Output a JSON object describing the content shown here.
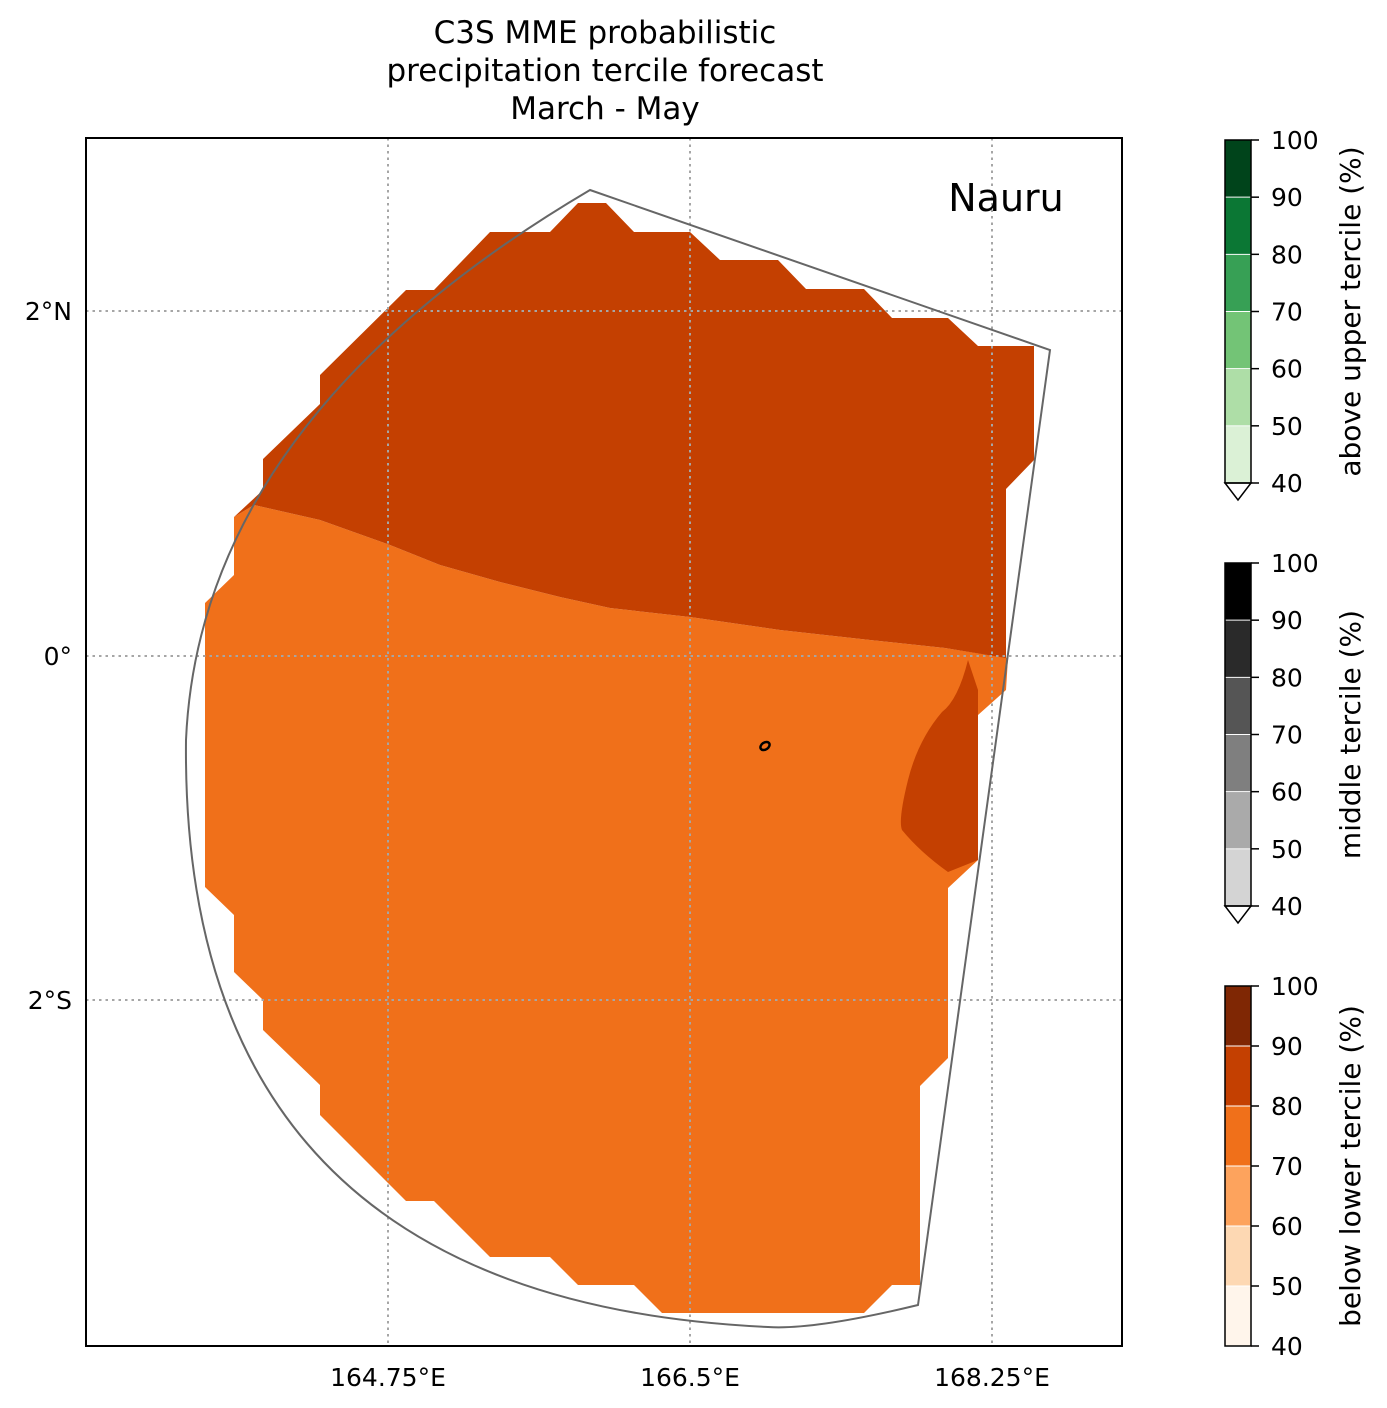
{
  "title": {
    "line1": "C3S MME probabilistic",
    "line2": "precipitation tercile forecast",
    "line3": "March - May"
  },
  "map": {
    "region_label": "Nauru",
    "lat_ticks": [
      "2°N",
      "0°",
      "2°S"
    ],
    "lon_ticks": [
      "164.75°E",
      "166.5°E",
      "168.25°E"
    ],
    "gridlines": true,
    "dominant_category": "below lower tercile",
    "regions": [
      {
        "category": "below lower tercile",
        "band": "80-90",
        "color": "#c44001",
        "area": "north"
      },
      {
        "category": "below lower tercile",
        "band": "70-80",
        "color": "#f0701a",
        "area": "south"
      },
      {
        "category": "below lower tercile",
        "band": "80-90",
        "color": "#c44001",
        "area": "east lobe"
      }
    ]
  },
  "colorbars": [
    {
      "label": "above upper tercile (%)",
      "ticks": [
        "100",
        "90",
        "80",
        "70",
        "60",
        "50",
        "40"
      ],
      "colors": [
        "#dbf1d6",
        "#aedea7",
        "#73c476",
        "#37a055",
        "#0b7734",
        "#00441b"
      ]
    },
    {
      "label": "middle tercile (%)",
      "ticks": [
        "100",
        "90",
        "80",
        "70",
        "60",
        "50",
        "40"
      ],
      "colors": [
        "#d4d4d4",
        "#aaaaaa",
        "#7f7f7f",
        "#555555",
        "#2a2a2a",
        "#000000"
      ]
    },
    {
      "label": "below lower tercile (%)",
      "ticks": [
        "100",
        "90",
        "80",
        "70",
        "60",
        "50",
        "40"
      ],
      "colors": [
        "#fff5eb",
        "#fdd8b3",
        "#fda35d",
        "#f0701a",
        "#c44001",
        "#7f2704"
      ]
    }
  ]
}
